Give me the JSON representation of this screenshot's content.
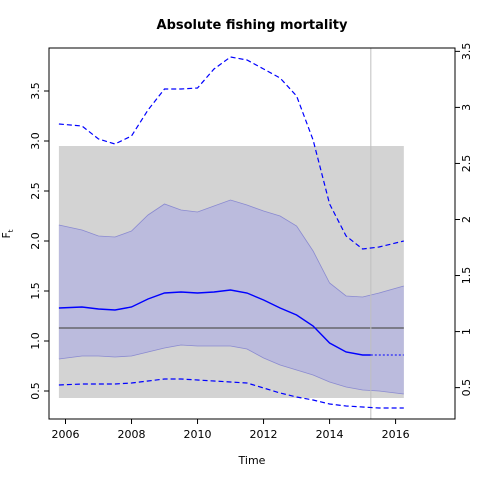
{
  "chart_data": {
    "type": "line",
    "title": "Absolute fishing mortality",
    "xlabel": "Time",
    "ylabel": "F",
    "ylabel_subscript": "t",
    "xlim": [
      2005.5,
      2017.8
    ],
    "ylim": [
      0.22,
      3.93
    ],
    "right_ylim": [
      0.22,
      3.53
    ],
    "x_ticks": [
      2006,
      2008,
      2010,
      2012,
      2014,
      2016
    ],
    "x_tick_labels": [
      "2006",
      "2008",
      "2010",
      "2012",
      "2014",
      "2016"
    ],
    "y_ticks": [
      0.5,
      1.0,
      1.5,
      2.0,
      2.5,
      3.0,
      3.5
    ],
    "y_tick_labels": [
      "0.5",
      "1.0",
      "1.5",
      "2.0",
      "2.5",
      "3.0",
      "3.5"
    ],
    "right_y_ticks": [
      0.5,
      1,
      1.5,
      2,
      2.5,
      3,
      3.5
    ],
    "right_y_tick_labels": [
      "0.5",
      "1",
      "1.5",
      "2",
      "2.5",
      "3",
      "3.5"
    ],
    "grid": false,
    "colors": {
      "gray_band": "#d3d3d3",
      "ci_fill": "#bbbbdd",
      "ci_edge": "#8a8ad0",
      "estimate": "#0000ff",
      "reference_line": "#555555",
      "vertical_line": "#bfbfbf"
    },
    "gray_band": {
      "x": [
        2005.8,
        2016.25
      ],
      "y": [
        0.43,
        2.95
      ]
    },
    "reference_line": {
      "y": 1.13,
      "x": [
        2005.8,
        2016.25
      ]
    },
    "vertical_line": {
      "x": 2015.25
    },
    "series": [
      {
        "role": "estimate",
        "style": "solid",
        "x": [
          2005.8,
          2006.5,
          2007.0,
          2007.5,
          2008.0,
          2008.5,
          2009.0,
          2009.5,
          2010.0,
          2010.5,
          2011.0,
          2011.5,
          2012.0,
          2012.5,
          2013.0,
          2013.5,
          2014.0,
          2014.5,
          2015.0,
          2015.25
        ],
        "y": [
          1.33,
          1.34,
          1.32,
          1.31,
          1.34,
          1.42,
          1.48,
          1.49,
          1.48,
          1.49,
          1.51,
          1.48,
          1.41,
          1.33,
          1.26,
          1.15,
          0.98,
          0.89,
          0.86,
          0.86
        ]
      },
      {
        "role": "estimate-forecast",
        "style": "dotted",
        "x": [
          2015.25,
          2016.25
        ],
        "y": [
          0.86,
          0.86
        ]
      },
      {
        "role": "ci-upper",
        "style": "fill-edge",
        "x": [
          2005.8,
          2006.5,
          2007.0,
          2007.5,
          2008.0,
          2008.5,
          2009.0,
          2009.5,
          2010.0,
          2010.5,
          2011.0,
          2011.5,
          2012.0,
          2012.5,
          2013.0,
          2013.5,
          2014.0,
          2014.5,
          2015.0,
          2015.5,
          2016.25
        ],
        "y": [
          2.16,
          2.11,
          2.05,
          2.04,
          2.1,
          2.26,
          2.37,
          2.31,
          2.29,
          2.35,
          2.41,
          2.36,
          2.3,
          2.25,
          2.15,
          1.9,
          1.58,
          1.45,
          1.44,
          1.48,
          1.55
        ]
      },
      {
        "role": "ci-lower",
        "style": "fill-edge",
        "x": [
          2005.8,
          2006.5,
          2007.0,
          2007.5,
          2008.0,
          2008.5,
          2009.0,
          2009.5,
          2010.0,
          2010.5,
          2011.0,
          2011.5,
          2012.0,
          2012.5,
          2013.0,
          2013.5,
          2014.0,
          2014.5,
          2015.0,
          2015.5,
          2016.25
        ],
        "y": [
          0.82,
          0.85,
          0.85,
          0.84,
          0.85,
          0.89,
          0.93,
          0.96,
          0.95,
          0.95,
          0.95,
          0.92,
          0.83,
          0.76,
          0.71,
          0.66,
          0.59,
          0.54,
          0.51,
          0.5,
          0.47
        ]
      },
      {
        "role": "dashed-upper",
        "style": "dashed",
        "x": [
          2005.8,
          2006.5,
          2007.0,
          2007.5,
          2008.0,
          2008.5,
          2009.0,
          2009.5,
          2010.0,
          2010.5,
          2011.0,
          2011.5,
          2012.0,
          2012.5,
          2013.0,
          2013.5,
          2014.0,
          2014.5,
          2015.0,
          2015.5,
          2016.25
        ],
        "y": [
          3.17,
          3.15,
          3.02,
          2.97,
          3.05,
          3.31,
          3.52,
          3.52,
          3.53,
          3.72,
          3.84,
          3.81,
          3.72,
          3.63,
          3.45,
          3.01,
          2.37,
          2.05,
          1.92,
          1.94,
          2.0
        ]
      },
      {
        "role": "dashed-lower",
        "style": "dashed",
        "x": [
          2005.8,
          2006.5,
          2007.0,
          2007.5,
          2008.0,
          2008.5,
          2009.0,
          2009.5,
          2010.0,
          2010.5,
          2011.0,
          2011.5,
          2012.0,
          2012.5,
          2013.0,
          2013.5,
          2014.0,
          2014.5,
          2015.0,
          2015.5,
          2016.25
        ],
        "y": [
          0.56,
          0.57,
          0.57,
          0.57,
          0.58,
          0.6,
          0.62,
          0.62,
          0.61,
          0.6,
          0.59,
          0.58,
          0.53,
          0.48,
          0.44,
          0.41,
          0.37,
          0.35,
          0.34,
          0.33,
          0.33
        ]
      }
    ]
  }
}
